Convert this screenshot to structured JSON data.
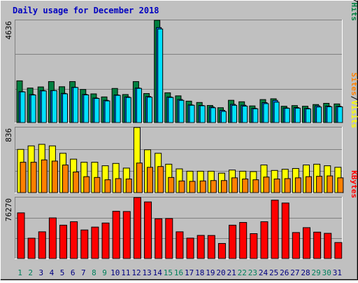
{
  "title": "Daily usage for December 2018",
  "colors": {
    "background": "#C0C0C0",
    "title_text": "#0000C0",
    "hits": "#008040",
    "files": "#0080FF",
    "pages": "#00E0FF",
    "visits": "#FFFF00",
    "sites": "#FF8000",
    "kbytes": "#FF0000",
    "weekend_day": "#00805C",
    "weekday_day": "#000080"
  },
  "chart_data": [
    {
      "type": "bar",
      "categories": [
        "1",
        "2",
        "3",
        "4",
        "5",
        "6",
        "7",
        "8",
        "9",
        "10",
        "11",
        "12",
        "13",
        "14",
        "15",
        "16",
        "17",
        "18",
        "19",
        "20",
        "21",
        "22",
        "23",
        "24",
        "25",
        "26",
        "27",
        "28",
        "29",
        "30",
        "31"
      ],
      "weekend_categories": [
        "1",
        "2",
        "8",
        "9",
        "15",
        "16",
        "22",
        "23",
        "29",
        "30"
      ],
      "ymax_label": "4636",
      "ylim": [
        0,
        4636
      ],
      "grid": true,
      "legend": {
        "position": "right",
        "labels": [
          "Pages",
          "Files",
          "Hits"
        ]
      },
      "series": [
        {
          "name": "Hits",
          "values": [
            1893,
            1566,
            1617,
            1860,
            1626,
            1860,
            1503,
            1302,
            1164,
            1548,
            1272,
            1860,
            1317,
            4636,
            1350,
            1212,
            972,
            912,
            777,
            675,
            1011,
            945,
            756,
            1044,
            1080,
            741,
            771,
            741,
            819,
            873,
            846
          ]
        },
        {
          "name": "Files",
          "values": [
            1403,
            1271,
            1452,
            1450,
            1325,
            1599,
            1276,
            1112,
            1009,
            1253,
            1166,
            1565,
            1182,
            4308,
            1161,
            1047,
            802,
            778,
            707,
            555,
            827,
            788,
            646,
            906,
            1007,
            664,
            681,
            641,
            760,
            748,
            737
          ]
        },
        {
          "name": "Pages",
          "values": [
            1392,
            1251,
            1436,
            1449,
            1304,
            1592,
            1255,
            1095,
            983,
            1236,
            1139,
            1551,
            1152,
            4244,
            1140,
            1008,
            785,
            763,
            672,
            507,
            784,
            747,
            627,
            860,
            927,
            647,
            655,
            621,
            707,
            719,
            714
          ]
        }
      ]
    },
    {
      "type": "bar",
      "categories": [
        "1",
        "2",
        "3",
        "4",
        "5",
        "6",
        "7",
        "8",
        "9",
        "10",
        "11",
        "12",
        "13",
        "14",
        "15",
        "16",
        "17",
        "18",
        "19",
        "20",
        "21",
        "22",
        "23",
        "24",
        "25",
        "26",
        "27",
        "28",
        "29",
        "30",
        "31"
      ],
      "ymax_label": "836",
      "ylim": [
        0,
        836
      ],
      "grid": true,
      "legend": {
        "position": "right",
        "labels": [
          "Sites",
          "Visits"
        ]
      },
      "series": [
        {
          "name": "Visits",
          "values": [
            555,
            600,
            620,
            600,
            505,
            430,
            390,
            390,
            345,
            375,
            315,
            836,
            550,
            505,
            365,
            305,
            275,
            275,
            275,
            250,
            290,
            275,
            270,
            355,
            285,
            300,
            310,
            355,
            365,
            345,
            325
          ]
        },
        {
          "name": "Sites",
          "values": [
            390,
            390,
            420,
            405,
            355,
            265,
            205,
            195,
            165,
            180,
            175,
            380,
            325,
            335,
            195,
            150,
            145,
            150,
            155,
            155,
            190,
            175,
            165,
            200,
            175,
            180,
            190,
            205,
            210,
            215,
            190
          ]
        }
      ]
    },
    {
      "type": "bar",
      "categories": [
        "1",
        "2",
        "3",
        "4",
        "5",
        "6",
        "7",
        "8",
        "9",
        "10",
        "11",
        "12",
        "13",
        "14",
        "15",
        "16",
        "17",
        "18",
        "19",
        "20",
        "21",
        "22",
        "23",
        "24",
        "25",
        "26",
        "27",
        "28",
        "29",
        "30",
        "31"
      ],
      "ymax_label": "76270",
      "ylim": [
        0,
        76270
      ],
      "grid": true,
      "legend": {
        "position": "right",
        "labels": [
          "KBytes"
        ]
      },
      "series": [
        {
          "name": "KBytes",
          "values": [
            57100,
            25400,
            33400,
            50800,
            41700,
            46000,
            35700,
            39300,
            44400,
            59100,
            58800,
            76270,
            70800,
            49700,
            50000,
            33400,
            25500,
            28900,
            28800,
            18800,
            41700,
            45100,
            31100,
            46000,
            73000,
            69400,
            32500,
            38600,
            33000,
            31500,
            20000
          ]
        }
      ]
    }
  ]
}
